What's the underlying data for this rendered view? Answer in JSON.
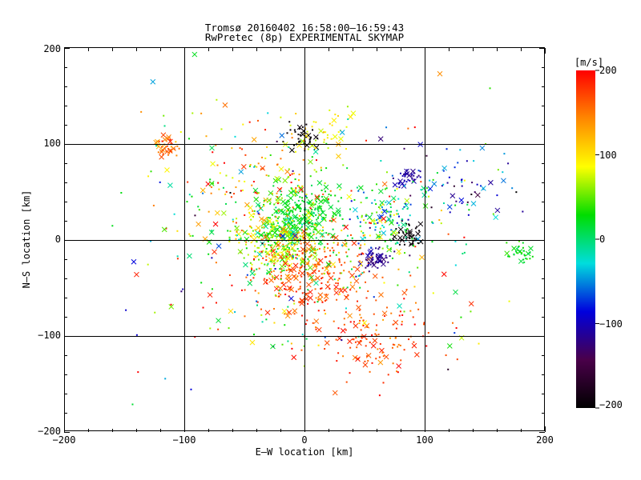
{
  "chart_data": {
    "type": "scatter",
    "title": "Tromsø 20160402 16:58:00–16:59:43",
    "subtitle": "RwPretec (8p) EXPERIMENTAL SKYMAP",
    "xlabel": "E–W location [km]",
    "ylabel": "N–S location [km]",
    "xlim": [
      -200,
      200
    ],
    "ylim": [
      -200,
      200
    ],
    "x_ticks": [
      -200,
      -100,
      0,
      100,
      200
    ],
    "y_ticks": [
      -200,
      -100,
      0,
      100,
      200
    ],
    "x_tick_labels": [
      "−200",
      "−100",
      "0",
      "100",
      "200"
    ],
    "y_tick_labels": [
      "−200",
      "−100",
      "0",
      "100",
      "200"
    ],
    "grid": "on",
    "markers": "x crosses and dots",
    "colorbar": {
      "label": "[m/s]",
      "range": [
        -200,
        200
      ],
      "ticks": [
        -200,
        -100,
        0,
        100,
        200
      ],
      "tick_labels": [
        "−200",
        "−100",
        "0",
        "100",
        "200"
      ],
      "colormap": [
        "#000000",
        "#4a004a",
        "#0000dd",
        "#00dddd",
        "#00dd00",
        "#ffff00",
        "#ff8800",
        "#ff0000"
      ],
      "placement": "right"
    },
    "clusters": [
      {
        "x": 0,
        "y": 25,
        "spread": 25,
        "value": 20,
        "value_spread": 20,
        "count": 260
      },
      {
        "x": -20,
        "y": -5,
        "spread": 28,
        "value": 60,
        "value_spread": 60,
        "count": 300
      },
      {
        "x": 0,
        "y": -35,
        "spread": 45,
        "value": 170,
        "value_spread": 30,
        "count": 280
      },
      {
        "x": 60,
        "y": -20,
        "spread": 10,
        "value": -120,
        "value_spread": 15,
        "count": 55
      },
      {
        "x": 85,
        "y": 65,
        "spread": 8,
        "value": -110,
        "value_spread": 15,
        "count": 35
      },
      {
        "x": 87,
        "y": 5,
        "spread": 10,
        "value": -195,
        "value_spread": 5,
        "count": 45
      },
      {
        "x": 0,
        "y": 105,
        "spread": 12,
        "value": -195,
        "value_spread": 5,
        "count": 40
      },
      {
        "x": -115,
        "y": 97,
        "spread": 8,
        "value": 150,
        "value_spread": 30,
        "count": 40
      },
      {
        "x": 70,
        "y": 20,
        "spread": 25,
        "value": 0,
        "value_spread": 80,
        "count": 120
      },
      {
        "x": 180,
        "y": -15,
        "spread": 10,
        "value": 20,
        "value_spread": 20,
        "count": 35
      },
      {
        "x": 15,
        "y": 110,
        "spread": 20,
        "value": 90,
        "value_spread": 40,
        "count": 40
      },
      {
        "x": 60,
        "y": -100,
        "spread": 35,
        "value": 170,
        "value_spread": 30,
        "count": 120
      },
      {
        "x": -40,
        "y": 60,
        "spread": 45,
        "value": 120,
        "value_spread": 90,
        "count": 120
      },
      {
        "x": 0,
        "y": 0,
        "spread": 110,
        "value": 60,
        "value_spread": 150,
        "count": 400
      },
      {
        "x": 130,
        "y": 60,
        "spread": 35,
        "value": -80,
        "value_spread": 100,
        "count": 60
      }
    ],
    "cluster_note": "approximate point clusters: centre (km), spread (km), velocity (m/s)"
  }
}
